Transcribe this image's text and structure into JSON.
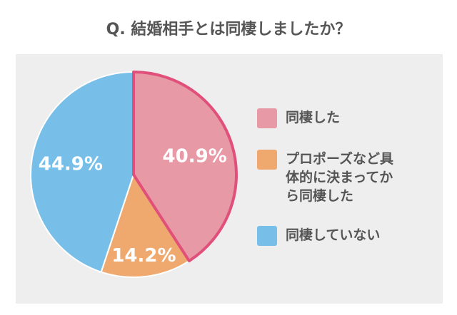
{
  "chart_data": {
    "type": "pie",
    "title": "Q. 結婚相手とは同棲しましたか？",
    "categories": [
      "同棲した",
      "プロポーズなど具体的に決まってから同棲した",
      "同棲していない"
    ],
    "values": [
      40.9,
      14.2,
      44.9
    ],
    "value_labels": [
      "40.9%",
      "14.2%",
      "44.9%"
    ],
    "colors": [
      "#e899a6",
      "#efa96e",
      "#77bfe9"
    ],
    "highlight_index": 0,
    "highlight_color": "#e0507a"
  }
}
